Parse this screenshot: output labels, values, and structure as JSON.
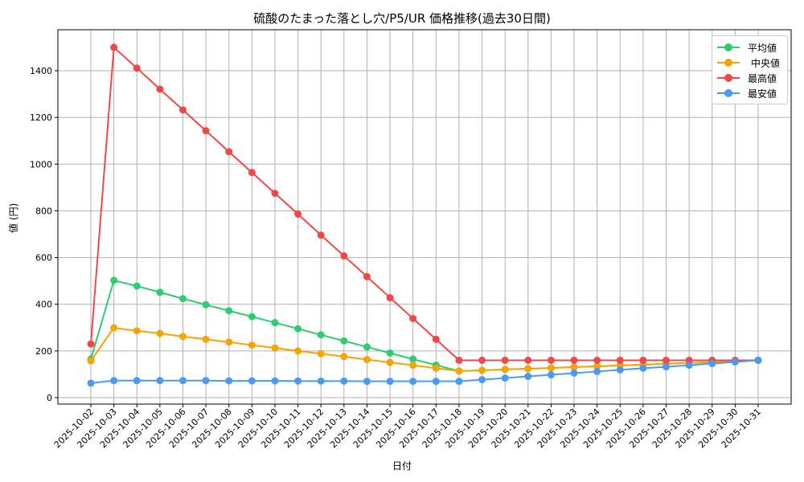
{
  "chart_data": {
    "type": "line",
    "title": "硫酸のたまった落とし穴/P5/UR 価格推移(過去30日間)",
    "xlabel": "日付",
    "ylabel": "値 (円)",
    "ylim": [
      -20,
      1570
    ],
    "yticks": [
      0,
      200,
      400,
      600,
      800,
      1000,
      1200,
      1400
    ],
    "grid": true,
    "legend_position": "upper right",
    "x": [
      "2025-10-02",
      "2025-10-03",
      "2025-10-04",
      "2025-10-05",
      "2025-10-06",
      "2025-10-07",
      "2025-10-08",
      "2025-10-09",
      "2025-10-10",
      "2025-10-11",
      "2025-10-12",
      "2025-10-13",
      "2025-10-14",
      "2025-10-15",
      "2025-10-16",
      "2025-10-17",
      "2025-10-18",
      "2025-10-19",
      "2025-10-20",
      "2025-10-21",
      "2025-10-22",
      "2025-10-23",
      "2025-10-24",
      "2025-10-25",
      "2025-10-26",
      "2025-10-27",
      "2025-10-28",
      "2025-10-29",
      "2025-10-30",
      "2025-10-31"
    ],
    "series": [
      {
        "name": "平均値",
        "color": "#2ecc71",
        "values": [
          165,
          502,
          478,
          451,
          424,
          398,
          372,
          347,
          321,
          295,
          269,
          243,
          217,
          191,
          165,
          139,
          114,
          117,
          121,
          124,
          127,
          131,
          134,
          138,
          141,
          145,
          149,
          152,
          156,
          160
        ]
      },
      {
        "name": "中央値",
        "color": "#f5a400",
        "values": [
          158,
          299,
          286,
          275,
          262,
          250,
          238,
          225,
          213,
          200,
          188,
          176,
          163,
          151,
          139,
          126,
          114,
          117,
          121,
          124,
          127,
          131,
          134,
          138,
          141,
          145,
          149,
          152,
          156,
          160
        ]
      },
      {
        "name": "最高値",
        "color": "#f04848",
        "values": [
          230,
          1500,
          1411,
          1321,
          1232,
          1143,
          1053,
          964,
          875,
          786,
          696,
          607,
          518,
          428,
          339,
          250,
          160,
          160,
          160,
          160,
          160,
          160,
          160,
          160,
          160,
          160,
          160,
          160,
          160,
          160
        ]
      },
      {
        "name": "最安値",
        "color": "#4a9af5",
        "values": [
          62,
          73,
          73,
          73,
          73,
          73,
          72,
          72,
          72,
          71,
          71,
          71,
          70,
          70,
          70,
          70,
          70,
          77,
          84,
          91,
          98,
          105,
          112,
          119,
          126,
          132,
          139,
          146,
          153,
          160
        ]
      }
    ]
  }
}
